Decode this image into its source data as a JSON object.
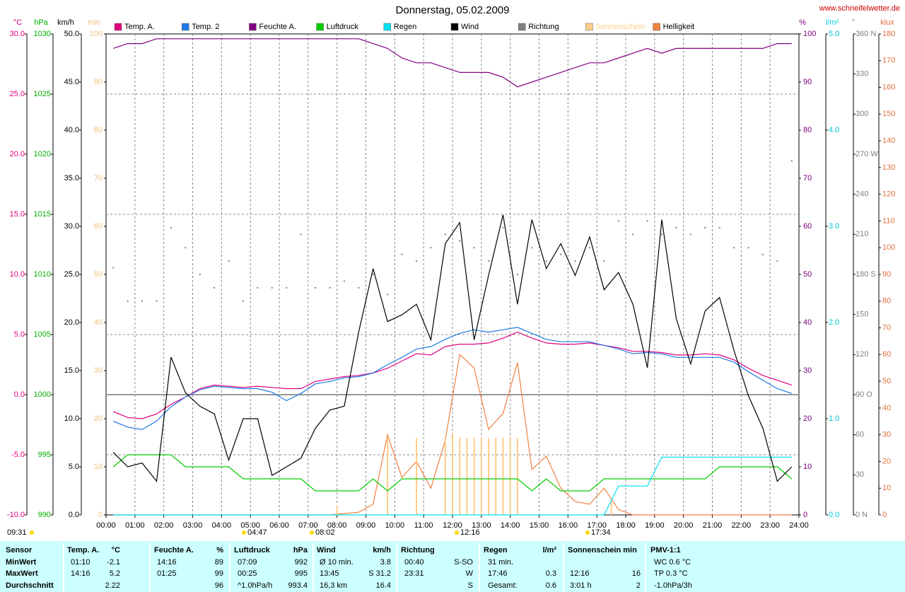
{
  "chart_data": {
    "type": "line",
    "title": "Donnerstag, 05.02.2009",
    "source": "www.schneifelwetter.de",
    "grid": true,
    "xlim": [
      0,
      24
    ],
    "xticks": [
      {
        "value": 0,
        "label": "00:00"
      },
      {
        "value": 1,
        "label": "01:00"
      },
      {
        "value": 2,
        "label": "02:00"
      },
      {
        "value": 3,
        "label": "03:00"
      },
      {
        "value": 4,
        "label": "04:00"
      },
      {
        "value": 5,
        "label": "05:00"
      },
      {
        "value": 6,
        "label": "06:00"
      },
      {
        "value": 7,
        "label": "07:00"
      },
      {
        "value": 8,
        "label": "08:00"
      },
      {
        "value": 9,
        "label": "09:00"
      },
      {
        "value": 10,
        "label": "10:00"
      },
      {
        "value": 11,
        "label": "11:00"
      },
      {
        "value": 12,
        "label": "12:00"
      },
      {
        "value": 13,
        "label": "13:00"
      },
      {
        "value": 14,
        "label": "14:00"
      },
      {
        "value": 15,
        "label": "15:00"
      },
      {
        "value": 16,
        "label": "16:00"
      },
      {
        "value": 17,
        "label": "17:00"
      },
      {
        "value": 18,
        "label": "18:00"
      },
      {
        "value": 19,
        "label": "19:00"
      },
      {
        "value": 20,
        "label": "20:00"
      },
      {
        "value": 21,
        "label": "21:00"
      },
      {
        "value": 22,
        "label": "22:00"
      },
      {
        "value": 23,
        "label": "23:00"
      },
      {
        "value": 24,
        "label": "24:00"
      }
    ],
    "axes": {
      "temp": {
        "unit": "°C",
        "color": "#e0007f",
        "lim": [
          -10,
          30
        ],
        "ticks": [
          {
            "value": 30,
            "label": "30.0"
          },
          {
            "value": 25,
            "label": "25.0"
          },
          {
            "value": 20,
            "label": "20.0"
          },
          {
            "value": 15,
            "label": "15.0"
          },
          {
            "value": 10,
            "label": "10.0"
          },
          {
            "value": 5,
            "label": "5.0"
          },
          {
            "value": 0,
            "label": "0.0"
          },
          {
            "value": -5,
            "label": "-5.0"
          },
          {
            "value": -10,
            "label": "-10.0"
          }
        ]
      },
      "hpa": {
        "unit": "hPa",
        "color": "#00b000",
        "lim": [
          990,
          1030
        ],
        "ticks": [
          1030,
          1025,
          1020,
          1015,
          1010,
          1005,
          1000,
          995,
          990
        ]
      },
      "kmh": {
        "unit": "km/h",
        "color": "#000000",
        "lim": [
          0,
          50
        ],
        "ticks": [
          {
            "value": 50,
            "label": "50.0"
          },
          {
            "value": 45,
            "label": "45.0"
          },
          {
            "value": 40,
            "label": "40.0"
          },
          {
            "value": 35,
            "label": "35.0"
          },
          {
            "value": 30,
            "label": "30.0"
          },
          {
            "value": 25,
            "label": "25.0"
          },
          {
            "value": 20,
            "label": "20.0"
          },
          {
            "value": 15,
            "label": "15.0"
          },
          {
            "value": 10,
            "label": "10.0"
          },
          {
            "value": 5,
            "label": "5.0"
          },
          {
            "value": 0,
            "label": "0.0"
          }
        ]
      },
      "min": {
        "unit": "min",
        "color": "#f0c080",
        "lim": [
          0,
          100
        ],
        "ticks": [
          100,
          90,
          80,
          70,
          60,
          50,
          40,
          30,
          20,
          10,
          0
        ]
      },
      "pct": {
        "unit": "%",
        "color": "#800080",
        "lim": [
          0,
          100
        ],
        "ticks": [
          100,
          90,
          80,
          70,
          60,
          50,
          40,
          30,
          20,
          10,
          0
        ]
      },
      "lm2": {
        "unit": "l/m²",
        "color": "#00c8d8",
        "lim": [
          0,
          5
        ],
        "ticks": [
          {
            "value": 5,
            "label": "5.0"
          },
          {
            "value": 4,
            "label": "4.0"
          },
          {
            "value": 3,
            "label": "3.0"
          },
          {
            "value": 2,
            "label": "2.0"
          },
          {
            "value": 1,
            "label": "1.0"
          },
          {
            "value": 0,
            "label": "0.0"
          }
        ]
      },
      "deg": {
        "unit": "°",
        "color": "#808080",
        "lim": [
          0,
          360
        ],
        "ticks": [
          {
            "value": 360,
            "label": "360 N"
          },
          330,
          300,
          {
            "value": 270,
            "label": "270 W"
          },
          240,
          210,
          {
            "value": 180,
            "label": "180 S"
          },
          150,
          120,
          {
            "value": 90,
            "label": "90 O"
          },
          60,
          30,
          {
            "value": 0,
            "label": "0 N"
          }
        ]
      },
      "klux": {
        "unit": "klux",
        "color": "#e07040",
        "lim": [
          0,
          180
        ],
        "ticks": [
          180,
          170,
          160,
          150,
          140,
          130,
          120,
          110,
          100,
          90,
          80,
          70,
          60,
          50,
          40,
          30,
          20,
          10,
          0
        ]
      }
    },
    "x": [
      0.25,
      0.75,
      1.25,
      1.75,
      2.25,
      2.75,
      3.25,
      3.75,
      4.25,
      4.75,
      5.25,
      5.75,
      6.25,
      6.75,
      7.25,
      7.75,
      8.25,
      8.75,
      9.25,
      9.75,
      10.25,
      10.75,
      11.25,
      11.75,
      12.25,
      12.75,
      13.25,
      13.75,
      14.25,
      14.75,
      15.25,
      15.75,
      16.25,
      16.75,
      17.25,
      17.75,
      18.25,
      18.75,
      19.25,
      19.75,
      20.25,
      20.75,
      21.25,
      21.75,
      22.25,
      22.75,
      23.25,
      23.75
    ],
    "series": [
      {
        "name": "Temp. A.",
        "color": "#e0007f",
        "axis": "temp",
        "values": [
          -1.4,
          -1.9,
          -2.0,
          -1.6,
          -0.8,
          -0.2,
          0.5,
          0.8,
          0.7,
          0.6,
          0.7,
          0.6,
          0.5,
          0.5,
          1.1,
          1.3,
          1.5,
          1.6,
          1.8,
          2.2,
          2.8,
          3.4,
          3.3,
          4.0,
          4.2,
          4.2,
          4.3,
          4.7,
          5.2,
          4.7,
          4.3,
          4.2,
          4.2,
          4.3,
          4.1,
          3.9,
          3.6,
          3.6,
          3.5,
          3.3,
          3.3,
          3.4,
          3.3,
          2.9,
          2.2,
          1.6,
          1.2,
          0.8
        ]
      },
      {
        "name": "Temp. 2",
        "color": "#1e78e6",
        "axis": "temp",
        "values": [
          -2.2,
          -2.7,
          -2.9,
          -2.2,
          -1.0,
          -0.2,
          0.4,
          0.7,
          0.6,
          0.5,
          0.5,
          0.2,
          -0.5,
          0.1,
          0.9,
          1.1,
          1.4,
          1.5,
          1.8,
          2.5,
          3.1,
          3.8,
          4.0,
          4.6,
          5.1,
          5.4,
          5.2,
          5.4,
          5.6,
          5.1,
          4.6,
          4.4,
          4.4,
          4.4,
          4.1,
          3.8,
          3.4,
          3.5,
          3.4,
          3.1,
          3.1,
          3.1,
          3.1,
          2.7,
          1.9,
          1.2,
          0.5,
          0.1
        ]
      },
      {
        "name": "Feuchte A.",
        "color": "#800080",
        "axis": "pct",
        "values": [
          97,
          98,
          98,
          99,
          99,
          99,
          99,
          99,
          99,
          99,
          99,
          99,
          99,
          99,
          99,
          99,
          99,
          99,
          98,
          97,
          95,
          94,
          94,
          93,
          92,
          92,
          92,
          91,
          89,
          90,
          91,
          92,
          93,
          94,
          94,
          95,
          96,
          97,
          96,
          97,
          97,
          97,
          97,
          97,
          97,
          97,
          98,
          98
        ]
      },
      {
        "name": "Luftdruck",
        "color": "#00cc00",
        "axis": "hpa",
        "values": [
          994,
          995,
          995,
          995,
          995,
          994,
          994,
          994,
          994,
          993,
          993,
          993,
          993,
          993,
          992,
          992,
          992,
          992,
          993,
          992,
          993,
          993,
          993,
          993,
          993,
          993,
          993,
          993,
          993,
          992,
          993,
          992,
          992,
          992,
          993,
          993,
          993,
          993,
          993,
          993,
          993,
          993,
          994,
          994,
          994,
          994,
          994,
          993
        ]
      },
      {
        "name": "Regen",
        "color": "#00e0f0",
        "axis": "lm2",
        "values": [
          0,
          0,
          0,
          0,
          0,
          0,
          0,
          0,
          0,
          0,
          0,
          0,
          0,
          0,
          0,
          0,
          0,
          0,
          0,
          0,
          0,
          0,
          0,
          0,
          0,
          0,
          0,
          0,
          0,
          0,
          0,
          0,
          0,
          0,
          0,
          0.3,
          0.3,
          0.3,
          0.6,
          0.6,
          0.6,
          0.6,
          0.6,
          0.6,
          0.6,
          0.6,
          0.6,
          0.6
        ]
      },
      {
        "name": "Wind",
        "color": "#000000",
        "axis": "kmh",
        "values": [
          6.5,
          5.0,
          5.4,
          3.5,
          16.4,
          12.7,
          11.3,
          10.5,
          5.7,
          10.0,
          10.0,
          4.1,
          5.0,
          5.9,
          9.0,
          10.9,
          11.3,
          19.0,
          25.6,
          20.1,
          20.8,
          21.9,
          18.2,
          28.2,
          30.4,
          18.2,
          24.9,
          31.2,
          21.9,
          30.7,
          25.6,
          28.2,
          24.9,
          28.9,
          23.4,
          25.2,
          21.9,
          15.3,
          30.7,
          20.4,
          15.7,
          21.2,
          22.6,
          17.1,
          12.4,
          9.0,
          3.5,
          5.0
        ]
      },
      {
        "name": "Richtung",
        "color": "#808080",
        "axis": "deg",
        "style": "dots",
        "values": [
          185,
          160,
          160,
          160,
          215,
          200,
          180,
          170,
          190,
          160,
          170,
          170,
          170,
          210,
          170,
          170,
          175,
          170,
          180,
          165,
          195,
          190,
          200,
          210,
          205,
          200,
          190,
          215,
          180,
          200,
          190,
          195,
          190,
          200,
          190,
          220,
          210,
          220,
          210,
          215,
          210,
          215,
          215,
          200,
          200,
          195,
          190,
          265
        ]
      },
      {
        "name": "Sonnenschein",
        "color": "#ffcc88",
        "axis": "min",
        "style": "bars",
        "x": [
          8.0,
          9.75,
          10.75,
          11.75,
          12.0,
          12.25,
          12.5,
          12.75,
          13.0,
          13.25,
          13.5,
          13.75,
          14.0,
          14.25,
          17.5
        ],
        "values": [
          2,
          16,
          16,
          16,
          17,
          16,
          16,
          16,
          16,
          16,
          16,
          16,
          16,
          16,
          3
        ]
      },
      {
        "name": "Helligkeit",
        "color": "#f08040",
        "axis": "klux",
        "values": [
          0,
          0,
          0,
          0,
          0,
          0,
          0,
          0,
          0,
          0,
          0,
          0,
          0,
          0,
          0,
          0,
          0.5,
          1,
          4,
          30,
          14,
          20,
          10,
          28,
          60,
          55,
          32,
          38,
          57,
          17,
          22,
          10,
          5,
          4,
          10,
          2,
          0,
          0,
          0,
          0,
          0,
          0,
          0,
          0,
          0,
          0,
          0,
          0
        ]
      }
    ],
    "sun_times": [
      "09:31",
      "04:47",
      "08:02",
      "12:16",
      "17:34"
    ]
  },
  "table": {
    "sensor": [
      "Sensor",
      "MinWert",
      "MaxWert",
      "Durchschnitt"
    ],
    "groups": [
      {
        "title": "Temp. A.",
        "unit": "°C",
        "rows": [
          [
            "01:10",
            "-2.1"
          ],
          [
            "14:16",
            "5.2"
          ],
          [
            null,
            "2.22"
          ]
        ]
      },
      {
        "title": "Feuchte A.",
        "unit": "%",
        "rows": [
          [
            "14:16",
            "89"
          ],
          [
            "01:25",
            "99"
          ],
          [
            null,
            "96"
          ]
        ]
      },
      {
        "title": "Luftdruck",
        "unit": "hPa",
        "rows": [
          [
            "07:09",
            "992"
          ],
          [
            "00:25",
            "995"
          ],
          [
            "^1.0hPa/h",
            "993.4"
          ]
        ]
      },
      {
        "title": "Wind",
        "unit": "km/h",
        "rows": [
          [
            "Ø 10 min.",
            "3.8"
          ],
          [
            "13:45",
            "S 31.2"
          ],
          [
            "16,3 km",
            "16.4"
          ]
        ]
      },
      {
        "title": "Richtung",
        "unit": null,
        "rows": [
          [
            "00:40",
            "S-SO"
          ],
          [
            "23:31",
            "W"
          ],
          [
            null,
            "S"
          ]
        ]
      },
      {
        "title": "Regen",
        "unit": "l/m²",
        "rows": [
          [
            "31 min.",
            null
          ],
          [
            "17:46",
            "0.3"
          ],
          [
            "Gesamt:",
            "0.6"
          ]
        ]
      },
      {
        "title": "Sonnenschein min",
        "unit": null,
        "rows": [
          [
            null,
            null
          ],
          [
            "12:16",
            "16"
          ],
          [
            "3:01 h",
            "2"
          ]
        ]
      },
      {
        "title": "PMV-1:1",
        "unit": null,
        "rows": [
          [
            "WC 0.6 °C",
            null
          ],
          [
            "TP 0.3 °C",
            null
          ],
          [
            "-1.0hPa/3h",
            null
          ]
        ]
      }
    ]
  }
}
